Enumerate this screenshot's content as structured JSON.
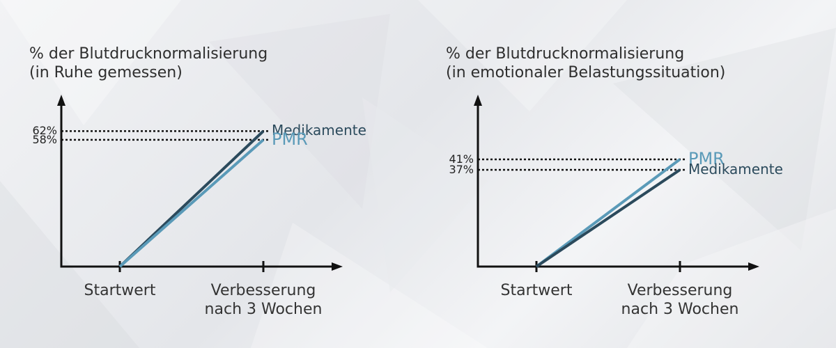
{
  "chart_data": [
    {
      "type": "line",
      "title": "% der Blutdrucknormalisierung\n(in Ruhe gemessen)",
      "categories": [
        "Startwert",
        "Verbesserung\nnach 3 Wochen"
      ],
      "ylim": [
        0,
        79
      ],
      "yticks": [
        {
          "value": 58,
          "label": "58%"
        },
        {
          "value": 62,
          "label": "62%"
        }
      ],
      "series": [
        {
          "name": "Medikamente",
          "color": "#2b4a5c",
          "values": [
            0,
            62
          ]
        },
        {
          "name": "PMR",
          "color": "#5a9ab8",
          "values": [
            0,
            58
          ]
        }
      ]
    },
    {
      "type": "line",
      "title": "% der Blutdrucknormalisierung\n(in emotionaler Belastungssituation)",
      "categories": [
        "Startwert",
        "Verbesserung\nnach 3 Wochen"
      ],
      "ylim": [
        0,
        66
      ],
      "yticks": [
        {
          "value": 37,
          "label": "37%"
        },
        {
          "value": 41,
          "label": "41%"
        }
      ],
      "series": [
        {
          "name": "PMR",
          "color": "#5a9ab8",
          "values": [
            0,
            41
          ]
        },
        {
          "name": "Medikamente",
          "color": "#2b4a5c",
          "values": [
            0,
            37
          ]
        }
      ]
    }
  ]
}
